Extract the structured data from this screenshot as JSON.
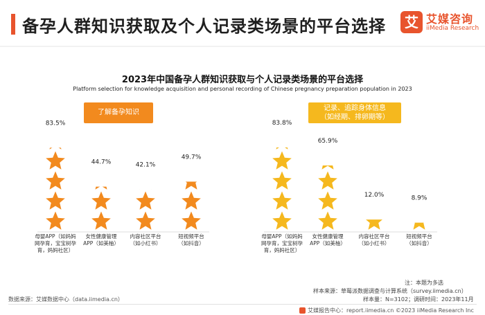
{
  "header": {
    "title": "备孕人群知识获取及个人记录类场景的平台选择",
    "logo_mark": "艾",
    "logo_name": "艾媒咨询",
    "logo_sub": "iiMedia Research"
  },
  "colors": {
    "accent": "#e8542d",
    "star_left": "#f28a1e",
    "star_right": "#f5b81e"
  },
  "chart_data": {
    "type": "bar",
    "title": "2023年中国备孕人群知识获取与个人记录类场景的平台选择",
    "subtitle": "Platform selection for knowledge acquisition and personal recording of Chinese pregnancy preparation population in 2023",
    "ylim": [
      0,
      100
    ],
    "unit": "%",
    "panels": [
      {
        "label": "了解备孕知识",
        "color": "#f28a1e",
        "categories": [
          "母婴APP（如妈妈网孕育，宝宝树孕育，妈妈社区）",
          "女性健康管理APP（如美柚）",
          "内容社区平台（如小红书）",
          "短视频平台（如抖音）"
        ],
        "values": [
          83.5,
          44.7,
          42.1,
          49.7
        ],
        "value_labels": [
          "83.5%",
          "44.7%",
          "42.1%",
          "49.7%"
        ]
      },
      {
        "label": "记录、追踪身体信息（如经期、排卵期等）",
        "color": "#f5b81e",
        "categories": [
          "母婴APP（如妈妈网孕育，宝宝树孕育，妈妈社区）",
          "女性健康管理APP（如美柚）",
          "内容社区平台（如小红书）",
          "短视频平台（如抖音）"
        ],
        "values": [
          83.8,
          65.9,
          12.0,
          8.9
        ],
        "value_labels": [
          "83.8%",
          "65.9%",
          "12.0%",
          "8.9%"
        ]
      }
    ]
  },
  "panel_label_right_lines": [
    "记录、追踪身体信息",
    "（如经期、排卵期等）"
  ],
  "tick_lines": [
    [
      "母婴APP（如妈妈",
      "网孕育，宝宝树孕",
      "育，妈妈社区）"
    ],
    [
      "女性健康管理",
      "APP（如美柚）"
    ],
    [
      "内容社区平台",
      "（如小红书）"
    ],
    [
      "短视频平台",
      "（如抖音）"
    ]
  ],
  "footer": {
    "note": "注：本题为多选",
    "sample_source": "样本来源：草莓派数据调查与计算系统（survey.iimedia.cn）",
    "sample_size": "样本量：N=3102；调研时间：2023年11月",
    "data_source": "数据来源：艾媒数据中心（data.iimedia.cn）",
    "report_line": "艾媒报告中心：report.iimedia.cn  ©2023  iiMedia Research Inc"
  }
}
